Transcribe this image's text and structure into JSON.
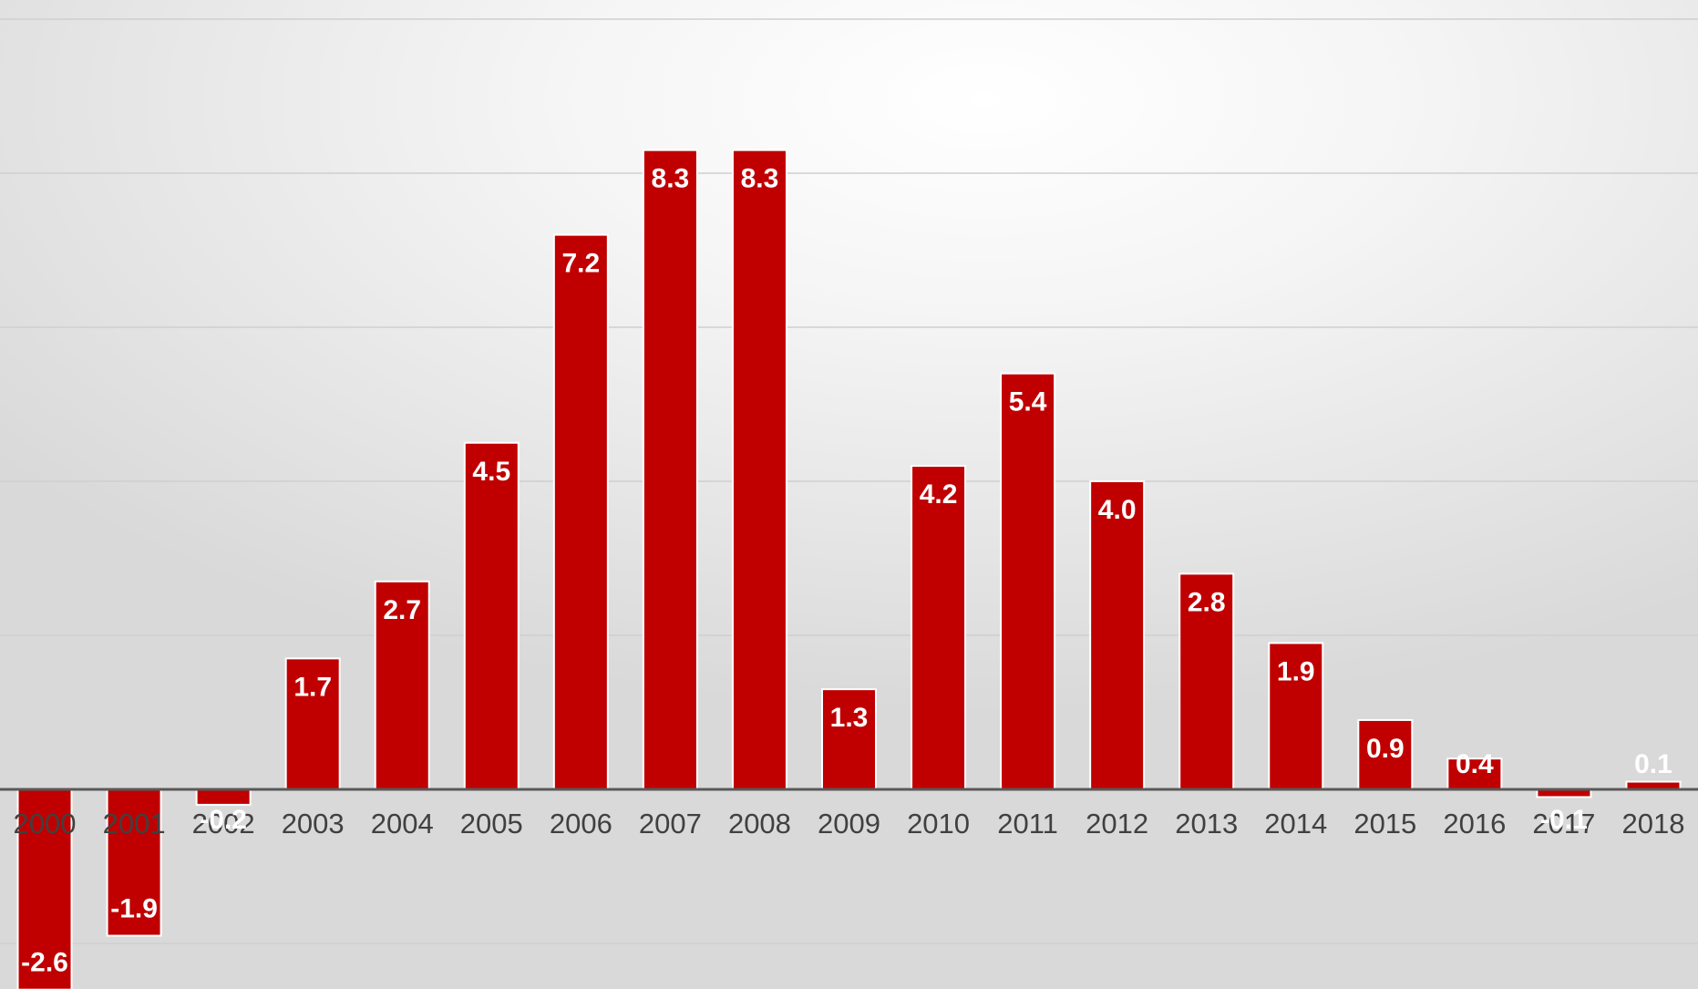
{
  "chart_data": {
    "type": "bar",
    "title": "",
    "xlabel": "",
    "ylabel": "",
    "categories": [
      "2000",
      "2001",
      "2002",
      "2003",
      "2004",
      "2005",
      "2006",
      "2007",
      "2008",
      "2009",
      "2010",
      "2011",
      "2012",
      "2013",
      "2014",
      "2015",
      "2016",
      "2017",
      "2018"
    ],
    "values": [
      -2.6,
      -1.9,
      -0.2,
      1.7,
      2.7,
      4.5,
      7.2,
      8.3,
      8.3,
      1.3,
      4.2,
      5.4,
      4.0,
      2.8,
      1.9,
      0.9,
      0.4,
      -0.1,
      0.1
    ],
    "data_labels": [
      "-2.6",
      "-1.9",
      "-0.2",
      "1.7",
      "2.7",
      "4.5",
      "7.2",
      "8.3",
      "8.3",
      "1.3",
      "4.2",
      "5.4",
      "4.0",
      "2.8",
      "1.9",
      "0.9",
      "0.4",
      "-0.1",
      "0.1"
    ],
    "ylim": [
      -2.6,
      10
    ],
    "gridlines": [
      -2,
      2,
      4,
      6,
      8,
      10
    ],
    "grid": true,
    "legend": "none",
    "colors": {
      "bar": "#c00000",
      "bar_outline": "#ffffff",
      "label": "#ffffff",
      "tick": "#404040",
      "axis": "#595959",
      "grid": "#cfcfcf"
    }
  }
}
